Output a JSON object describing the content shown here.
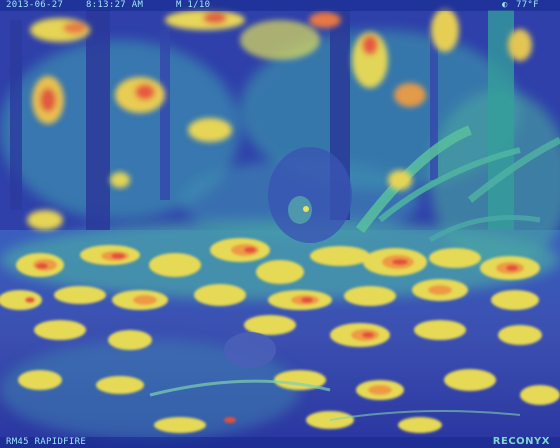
{
  "overlay": {
    "date": "2013-06-27",
    "time": "8:13:27 AM",
    "mode": "M 1/10",
    "moon_icon": "moon-phase-icon",
    "temperature": "77°F",
    "camera_model": "RM45 RAPIDFIRE",
    "brand": "RECONYX"
  },
  "palette": {
    "deep": "#2b3aa8",
    "teal": "#3fa6a8",
    "green": "#63c3a0",
    "yellow": "#e8e05a",
    "orange": "#f0a040",
    "red": "#e0503a"
  }
}
